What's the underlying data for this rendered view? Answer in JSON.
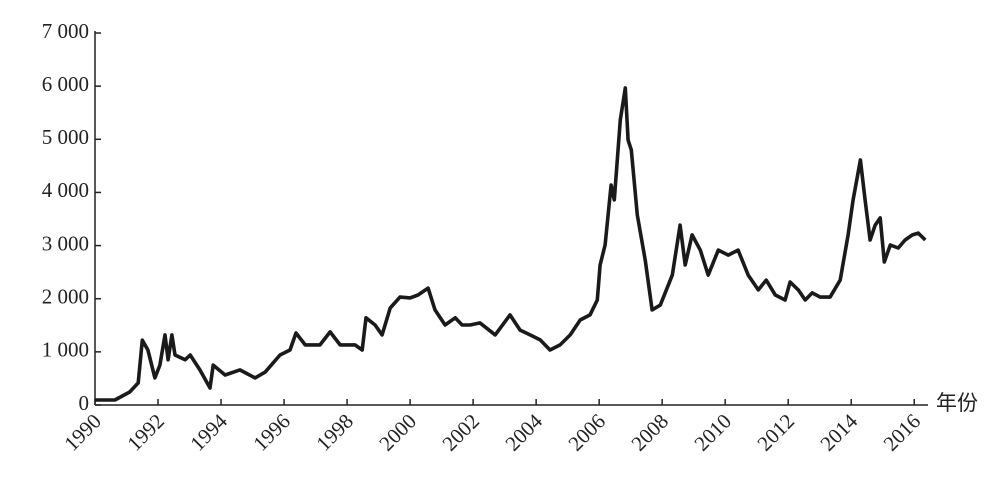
{
  "chart_data": {
    "type": "line",
    "x_label": "年份",
    "x": [
      1990.0,
      1990.63,
      1991.1,
      1991.37,
      1991.5,
      1991.68,
      1991.9,
      1992.06,
      1992.22,
      1992.32,
      1992.44,
      1992.54,
      1992.86,
      1993.02,
      1993.33,
      1993.65,
      1993.75,
      1994.13,
      1994.6,
      1995.08,
      1995.4,
      1995.87,
      1996.19,
      1996.38,
      1996.67,
      1997.14,
      1997.46,
      1997.78,
      1998.25,
      1998.48,
      1998.6,
      1998.89,
      1999.11,
      1999.37,
      1999.68,
      2000.0,
      2000.25,
      2000.57,
      2000.79,
      2001.11,
      2001.43,
      2001.65,
      2001.9,
      2002.22,
      2002.7,
      2003.17,
      2003.49,
      2003.81,
      2004.13,
      2004.44,
      2004.76,
      2005.08,
      2005.4,
      2005.71,
      2005.94,
      2006.03,
      2006.19,
      2006.38,
      2006.48,
      2006.67,
      2006.83,
      2006.92,
      2007.02,
      2007.21,
      2007.46,
      2007.68,
      2007.94,
      2008.32,
      2008.57,
      2008.73,
      2008.95,
      2009.21,
      2009.46,
      2009.78,
      2010.1,
      2010.41,
      2010.73,
      2011.05,
      2011.3,
      2011.59,
      2011.9,
      2012.06,
      2012.32,
      2012.54,
      2012.76,
      2013.02,
      2013.33,
      2013.65,
      2013.9,
      2014.06,
      2014.29,
      2014.44,
      2014.6,
      2014.76,
      2014.92,
      2015.05,
      2015.24,
      2015.49,
      2015.71,
      2015.94,
      2016.13,
      2016.35
    ],
    "series": [
      {
        "color": "#1a1a1a",
        "values": [
          95,
          95,
          245,
          415,
          1220,
          1035,
          510,
          750,
          1320,
          850,
          1320,
          940,
          850,
          940,
          660,
          320,
          750,
          565,
          660,
          510,
          620,
          940,
          1035,
          1355,
          1130,
          1130,
          1375,
          1130,
          1130,
          1035,
          1640,
          1505,
          1320,
          1825,
          2030,
          2015,
          2070,
          2200,
          1790,
          1505,
          1640,
          1505,
          1505,
          1545,
          1320,
          1695,
          1410,
          1320,
          1225,
          1035,
          1130,
          1320,
          1600,
          1695,
          1975,
          2635,
          3010,
          4140,
          3860,
          5365,
          5965,
          4985,
          4800,
          3575,
          2730,
          1790,
          1880,
          2445,
          3385,
          2635,
          3200,
          2915,
          2445,
          2915,
          2820,
          2915,
          2445,
          2165,
          2350,
          2070,
          1975,
          2315,
          2165,
          1975,
          2110,
          2030,
          2030,
          2350,
          3200,
          3860,
          4610,
          3860,
          3105,
          3385,
          3520,
          2690,
          3010,
          2955,
          3105,
          3200,
          3235,
          3105
        ]
      }
    ],
    "xlim": [
      1990,
      2016.5
    ],
    "xticks": [
      1990,
      1992,
      1994,
      1996,
      1998,
      2000,
      2002,
      2004,
      2006,
      2008,
      2010,
      2012,
      2014,
      2016
    ],
    "ylim": [
      0,
      7000
    ],
    "yticks": [
      0,
      {
        "value": 1000,
        "label": "1 000"
      },
      {
        "value": 2000,
        "label": "2 000"
      },
      {
        "value": 3000,
        "label": "3 000"
      },
      {
        "value": 4000,
        "label": "4 000"
      },
      {
        "value": 5000,
        "label": "5 000"
      },
      {
        "value": 6000,
        "label": "6 000"
      },
      {
        "value": 7000,
        "label": "7 000"
      }
    ]
  }
}
